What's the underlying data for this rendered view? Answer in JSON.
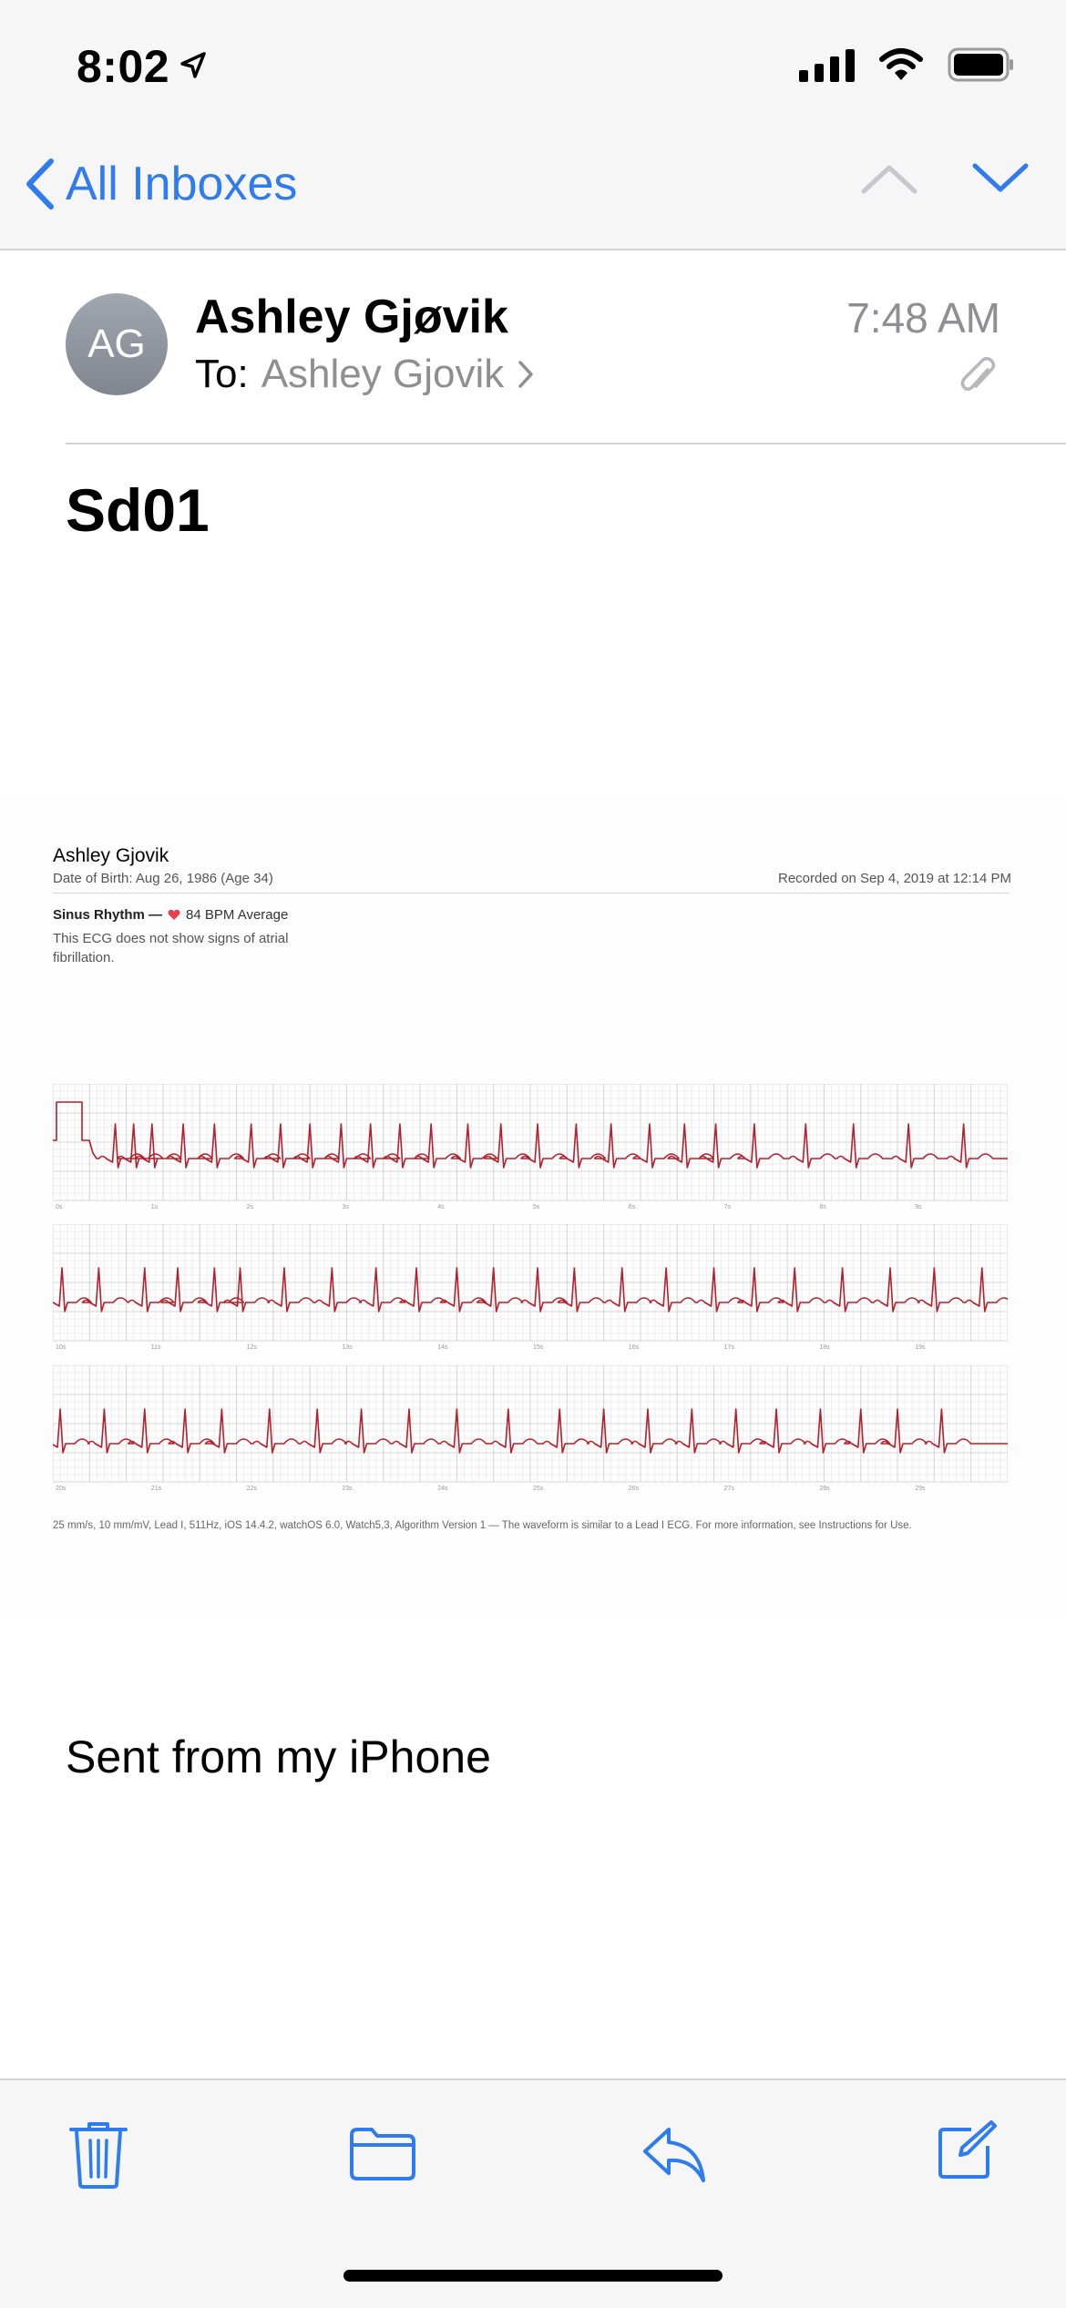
{
  "status_bar": {
    "time": "8:02"
  },
  "nav": {
    "back_label": "All Inboxes"
  },
  "message": {
    "avatar_initials": "AG",
    "sender": "Ashley Gjøvik",
    "to_label": "To:",
    "recipient": "Ashley Gjovik",
    "time": "7:48 AM",
    "subject": "Sd01",
    "signature": "Sent from my iPhone"
  },
  "ecg_report": {
    "patient_name": "Ashley Gjovik",
    "dob": "Date of Birth: Aug 26, 1986 (Age 34)",
    "recorded": "Recorded on Sep 4, 2019 at 12:14 PM",
    "classification": "Sinus Rhythm —",
    "bpm": "84 BPM Average",
    "description": "This ECG does not show signs of atrial fibrillation.",
    "footnote": "25 mm/s, 10 mm/mV, Lead I, 511Hz, iOS 14.4.2, watchOS 6.0, Watch5,3, Algorithm Version 1 — The waveform is similar to a Lead I ECG. For more information, see Instructions for Use.",
    "strips": [
      {
        "time_labels": [
          "0s",
          "1s",
          "2s",
          "3s",
          "4s",
          "5s",
          "6s",
          "7s",
          "8s",
          "9s"
        ],
        "beats": [
          0.7,
          1.7,
          2.2,
          2.7,
          3.55,
          4.4,
          5.4,
          6.2,
          7.0,
          7.85,
          8.65,
          9.45,
          10.3,
          11.3,
          12.2,
          13.2,
          14.25,
          15.2,
          16.25,
          17.2,
          18.05,
          19.1,
          20.5,
          21.8,
          23.3,
          24.8
        ]
      },
      {
        "time_labels": [
          "10s",
          "11s",
          "12s",
          "13s",
          "14s",
          "15s",
          "16s",
          "17s",
          "18s",
          "19s"
        ],
        "beats": [
          0.25,
          1.25,
          2.5,
          3.4,
          4.4,
          5.1,
          6.3,
          7.6,
          8.8,
          9.9,
          11.0,
          12.0,
          13.2,
          14.2,
          15.5,
          16.7,
          18.0,
          19.1,
          20.2,
          21.5,
          22.8,
          24.0,
          25.3
        ]
      },
      {
        "time_labels": [
          "20s",
          "21s",
          "22s",
          "23s",
          "24s",
          "25s",
          "26s",
          "27s",
          "28s",
          "29s"
        ],
        "beats": [
          0.2,
          1.4,
          2.5,
          3.6,
          4.6,
          5.9,
          7.2,
          8.4,
          9.7,
          11.0,
          12.4,
          13.8,
          15.0,
          16.2,
          17.4,
          18.6,
          19.7,
          20.9,
          22.0,
          23.0,
          24.2
        ]
      }
    ]
  },
  "colors": {
    "accent": "#2f7bf0",
    "ecg_trace": "#b3202c",
    "grid_major": "#d6d6d6",
    "grid_minor": "#eeeeee"
  },
  "toolbar": {
    "icons": [
      "trash-icon",
      "folder-icon",
      "reply-icon",
      "compose-icon"
    ]
  }
}
